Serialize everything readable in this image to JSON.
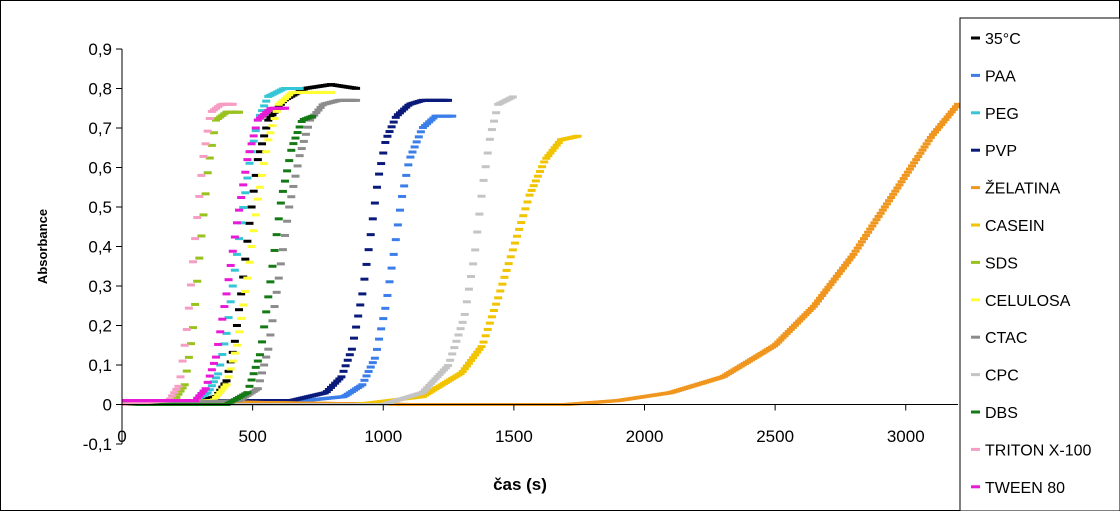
{
  "chart_data": {
    "type": "scatter",
    "title": "",
    "xlabel": "čas (s)",
    "ylabel": "Absorbance",
    "xlim": [
      0,
      3200
    ],
    "ylim": [
      -0.1,
      0.9
    ],
    "x_ticks": [
      "0",
      "500",
      "1000",
      "1500",
      "2000",
      "2500",
      "3000"
    ],
    "y_ticks": [
      "-0,1",
      "0",
      "0,1",
      "0,2",
      "0,3",
      "0,4",
      "0,5",
      "0,6",
      "0,7",
      "0,8",
      "0,9"
    ],
    "grid": false,
    "legend_position": "right",
    "series": [
      {
        "name": "35°C",
        "color": "#000000",
        "x": [
          0,
          300,
          360,
          400,
          430,
          460,
          490,
          520,
          560,
          620,
          700,
          800,
          900
        ],
        "y": [
          0.01,
          0.01,
          0.02,
          0.06,
          0.15,
          0.3,
          0.47,
          0.62,
          0.72,
          0.77,
          0.8,
          0.81,
          0.8
        ]
      },
      {
        "name": "PAA",
        "color": "#3b7de9",
        "x": [
          0,
          700,
          850,
          920,
          970,
          1010,
          1040,
          1070,
          1100,
          1150,
          1200,
          1270
        ],
        "y": [
          0.01,
          0.01,
          0.02,
          0.05,
          0.12,
          0.25,
          0.38,
          0.52,
          0.62,
          0.7,
          0.73,
          0.73
        ]
      },
      {
        "name": "PEG",
        "color": "#33c6d6",
        "x": [
          0,
          280,
          330,
          370,
          400,
          430,
          460,
          490,
          520,
          560,
          620,
          680
        ],
        "y": [
          0.01,
          0.01,
          0.03,
          0.08,
          0.18,
          0.33,
          0.48,
          0.62,
          0.72,
          0.78,
          0.8,
          0.8
        ]
      },
      {
        "name": "PVP",
        "color": "#0a1a7a",
        "x": [
          0,
          650,
          780,
          840,
          880,
          920,
          950,
          980,
          1010,
          1050,
          1100,
          1150,
          1250
        ],
        "y": [
          0.01,
          0.01,
          0.03,
          0.07,
          0.14,
          0.28,
          0.42,
          0.57,
          0.67,
          0.73,
          0.76,
          0.77,
          0.77
        ]
      },
      {
        "name": "ŽELATINA",
        "color": "#f0961e",
        "x": [
          0,
          1100,
          1400,
          1700,
          1900,
          2100,
          2300,
          2500,
          2650,
          2800,
          2950,
          3100,
          3200
        ],
        "y": [
          0.01,
          0.0,
          0.0,
          0.0,
          0.01,
          0.03,
          0.07,
          0.15,
          0.25,
          0.38,
          0.53,
          0.68,
          0.76
        ]
      },
      {
        "name": "CASEIN",
        "color": "#f2c400",
        "x": [
          0,
          900,
          1150,
          1300,
          1380,
          1440,
          1500,
          1560,
          1620,
          1680,
          1750
        ],
        "y": [
          0.0,
          0.0,
          0.02,
          0.08,
          0.15,
          0.27,
          0.4,
          0.53,
          0.62,
          0.67,
          0.68
        ]
      },
      {
        "name": "SDS",
        "color": "#99c21e",
        "x": [
          0,
          200,
          240,
          270,
          300,
          330,
          360,
          400,
          450
        ],
        "y": [
          0.01,
          0.01,
          0.05,
          0.18,
          0.4,
          0.6,
          0.72,
          0.74,
          0.74
        ]
      },
      {
        "name": "CELULOSA",
        "color": "#ffff33",
        "x": [
          0,
          350,
          400,
          440,
          480,
          520,
          560,
          600,
          650,
          720,
          800
        ],
        "y": [
          0.0,
          0.01,
          0.05,
          0.15,
          0.32,
          0.52,
          0.67,
          0.76,
          0.79,
          0.79,
          0.79
        ]
      },
      {
        "name": "CTAC",
        "color": "#8c8c8c",
        "x": [
          0,
          450,
          520,
          560,
          600,
          640,
          680,
          720,
          770,
          830,
          900
        ],
        "y": [
          0.0,
          0.01,
          0.04,
          0.14,
          0.32,
          0.5,
          0.63,
          0.72,
          0.76,
          0.77,
          0.77
        ]
      },
      {
        "name": "CPC",
        "color": "#c4c4c4",
        "x": [
          0,
          1000,
          1150,
          1250,
          1310,
          1350,
          1380,
          1410,
          1440,
          1500
        ],
        "y": [
          0.0,
          0.0,
          0.03,
          0.1,
          0.22,
          0.38,
          0.55,
          0.68,
          0.76,
          0.78
        ]
      },
      {
        "name": "DBS",
        "color": "#157a15",
        "x": [
          0,
          400,
          480,
          530,
          570,
          610,
          650,
          690,
          730
        ],
        "y": [
          0.0,
          0.0,
          0.03,
          0.13,
          0.32,
          0.52,
          0.65,
          0.72,
          0.73
        ]
      },
      {
        "name": "TRITON X-100",
        "color": "#f59dc2",
        "x": [
          0,
          180,
          220,
          250,
          280,
          310,
          340,
          380,
          430
        ],
        "y": [
          0.0,
          0.01,
          0.05,
          0.2,
          0.42,
          0.62,
          0.74,
          0.76,
          0.76
        ]
      },
      {
        "name": "TWEEN 80",
        "color": "#e81ad6",
        "x": [
          0,
          280,
          320,
          360,
          400,
          440,
          480,
          520,
          570,
          630
        ],
        "y": [
          0.01,
          0.01,
          0.04,
          0.12,
          0.28,
          0.46,
          0.62,
          0.72,
          0.75,
          0.75
        ]
      }
    ]
  }
}
